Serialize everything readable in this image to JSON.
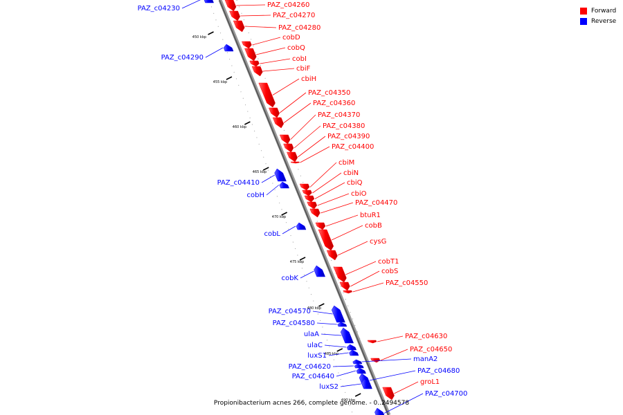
{
  "colors": {
    "forward": "#ff0000",
    "reverse": "#0000ff",
    "backbone": "#666666"
  },
  "legend": [
    {
      "label": "Forward",
      "color": "#ff0000"
    },
    {
      "label": "Reverse",
      "color": "#0000ff"
    }
  ],
  "caption": "Propionibacterium acnes 266, complete genome. - 0..2494578",
  "ticks": [
    "450 kbp",
    "455 kbp",
    "460 kbp",
    "465 kbp",
    "470 kbp",
    "475 kbp",
    "480 kbp",
    "485 kbp",
    "490 kbp"
  ],
  "genes": [
    {
      "name": "PAZ_c04230",
      "strand": "reverse"
    },
    {
      "name": "PAZ_c04260",
      "strand": "forward"
    },
    {
      "name": "PAZ_c04270",
      "strand": "forward"
    },
    {
      "name": "PAZ_c04280",
      "strand": "forward"
    },
    {
      "name": "cobD",
      "strand": "forward"
    },
    {
      "name": "cobQ",
      "strand": "forward"
    },
    {
      "name": "PAZ_c04290",
      "strand": "reverse"
    },
    {
      "name": "cobI",
      "strand": "forward"
    },
    {
      "name": "cbiF",
      "strand": "forward"
    },
    {
      "name": "cbiH",
      "strand": "forward"
    },
    {
      "name": "PAZ_c04350",
      "strand": "forward"
    },
    {
      "name": "PAZ_c04360",
      "strand": "forward"
    },
    {
      "name": "PAZ_c04370",
      "strand": "forward"
    },
    {
      "name": "PAZ_c04380",
      "strand": "forward"
    },
    {
      "name": "PAZ_c04390",
      "strand": "forward"
    },
    {
      "name": "PAZ_c04400",
      "strand": "forward"
    },
    {
      "name": "cbiM",
      "strand": "forward"
    },
    {
      "name": "cbiN",
      "strand": "forward"
    },
    {
      "name": "cbiQ",
      "strand": "forward"
    },
    {
      "name": "PAZ_c04410",
      "strand": "reverse"
    },
    {
      "name": "cbiO",
      "strand": "forward"
    },
    {
      "name": "cobH",
      "strand": "reverse"
    },
    {
      "name": "PAZ_c04470",
      "strand": "forward"
    },
    {
      "name": "btuR1",
      "strand": "forward"
    },
    {
      "name": "cobB",
      "strand": "forward"
    },
    {
      "name": "cobL",
      "strand": "reverse"
    },
    {
      "name": "cysG",
      "strand": "forward"
    },
    {
      "name": "cobT1",
      "strand": "forward"
    },
    {
      "name": "cobS",
      "strand": "forward"
    },
    {
      "name": "cobK",
      "strand": "reverse"
    },
    {
      "name": "PAZ_c04550",
      "strand": "forward"
    },
    {
      "name": "PAZ_c04570",
      "strand": "reverse"
    },
    {
      "name": "PAZ_c04580",
      "strand": "reverse"
    },
    {
      "name": "ulaA",
      "strand": "reverse"
    },
    {
      "name": "PAZ_c04630",
      "strand": "forward"
    },
    {
      "name": "ulaC",
      "strand": "reverse"
    },
    {
      "name": "luxS1",
      "strand": "reverse"
    },
    {
      "name": "PAZ_c04650",
      "strand": "forward"
    },
    {
      "name": "manA2",
      "strand": "reverse"
    },
    {
      "name": "PAZ_c04620",
      "strand": "reverse"
    },
    {
      "name": "PAZ_c04640",
      "strand": "reverse"
    },
    {
      "name": "PAZ_c04680",
      "strand": "reverse"
    },
    {
      "name": "groL1",
      "strand": "forward"
    },
    {
      "name": "luxS2",
      "strand": "reverse"
    },
    {
      "name": "PAZ_c04700",
      "strand": "reverse"
    }
  ]
}
